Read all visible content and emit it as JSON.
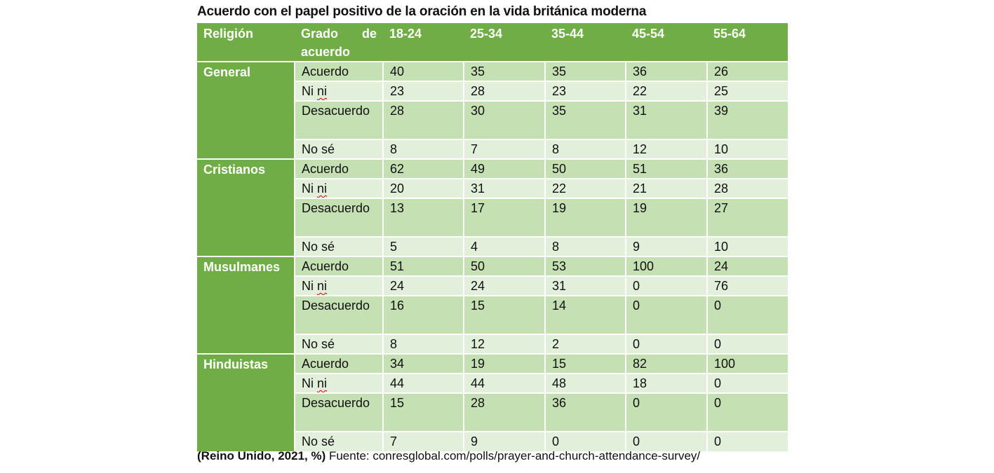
{
  "title": "Acuerdo con el papel positivo de la oración en la vida británica moderna",
  "colors": {
    "header": "#70AD47",
    "row_dark": "#C5E0B3",
    "row_light": "#E2EFDA"
  },
  "headers": [
    "Religión",
    "Grado de acuerdo",
    "18-24",
    "25-34",
    "35-44",
    "45-54",
    "55-64"
  ],
  "groups": [
    {
      "religion": "General",
      "rows": [
        {
          "grado": "Acuerdo",
          "values": [
            "40",
            "35",
            "35",
            "36",
            "26"
          ]
        },
        {
          "grado": "Ni ni",
          "values": [
            "23",
            "28",
            "23",
            "22",
            "25"
          ]
        },
        {
          "grado": "Desacuerdo",
          "values": [
            "28",
            "30",
            "35",
            "31",
            "39"
          ]
        },
        {
          "grado": "No sé",
          "values": [
            "8",
            "7",
            "8",
            "12",
            "10"
          ]
        }
      ]
    },
    {
      "religion": "Cristianos",
      "rows": [
        {
          "grado": "Acuerdo",
          "values": [
            "62",
            "49",
            "50",
            "51",
            "36"
          ]
        },
        {
          "grado": "Ni ni",
          "values": [
            "20",
            "31",
            "22",
            "21",
            "28"
          ]
        },
        {
          "grado": "Desacuerdo",
          "values": [
            "13",
            "17",
            "19",
            "19",
            "27"
          ]
        },
        {
          "grado": "No sé",
          "values": [
            "5",
            "4",
            "8",
            "9",
            "10"
          ]
        }
      ]
    },
    {
      "religion": "Musulmanes",
      "rows": [
        {
          "grado": "Acuerdo",
          "values": [
            "51",
            "50",
            "53",
            "100",
            "24"
          ]
        },
        {
          "grado": "Ni ni",
          "values": [
            "24",
            "24",
            "31",
            "0",
            "76"
          ]
        },
        {
          "grado": "Desacuerdo",
          "values": [
            "16",
            "15",
            "14",
            "0",
            "0"
          ]
        },
        {
          "grado": "No sé",
          "values": [
            "8",
            "12",
            "2",
            "0",
            "0"
          ]
        }
      ]
    },
    {
      "religion": "Hinduistas",
      "rows": [
        {
          "grado": "Acuerdo",
          "values": [
            "34",
            "19",
            "15",
            "82",
            "100"
          ]
        },
        {
          "grado": "Ni ni",
          "values": [
            "44",
            "44",
            "48",
            "18",
            "0"
          ]
        },
        {
          "grado": "Desacuerdo",
          "values": [
            "15",
            "28",
            "36",
            "0",
            "0"
          ]
        },
        {
          "grado": "No sé",
          "values": [
            "7",
            "9",
            "0",
            "0",
            "0"
          ]
        }
      ]
    }
  ],
  "footer": {
    "bold": "(Reino Unido, 2021, %)",
    "text": " Fuente: conresglobal.com/polls/prayer-and-church-attendance-survey/"
  }
}
